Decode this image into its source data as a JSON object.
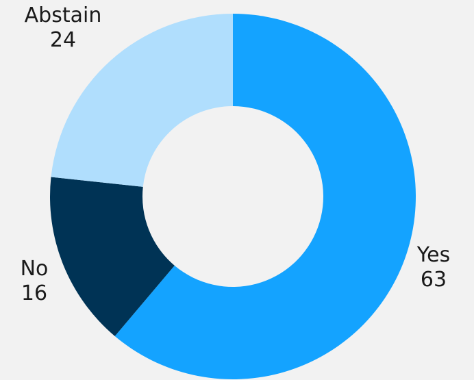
{
  "chart_data": {
    "type": "pie",
    "variant": "donut",
    "title": "",
    "categories": [
      "Yes",
      "No",
      "Abstain"
    ],
    "values": [
      63,
      16,
      24
    ],
    "colors": [
      "#14a3ff",
      "#003355",
      "#b0defd"
    ],
    "start": "12 o'clock",
    "direction": "clockwise",
    "legend": "none",
    "data_labels": "outside, category name and value"
  }
}
